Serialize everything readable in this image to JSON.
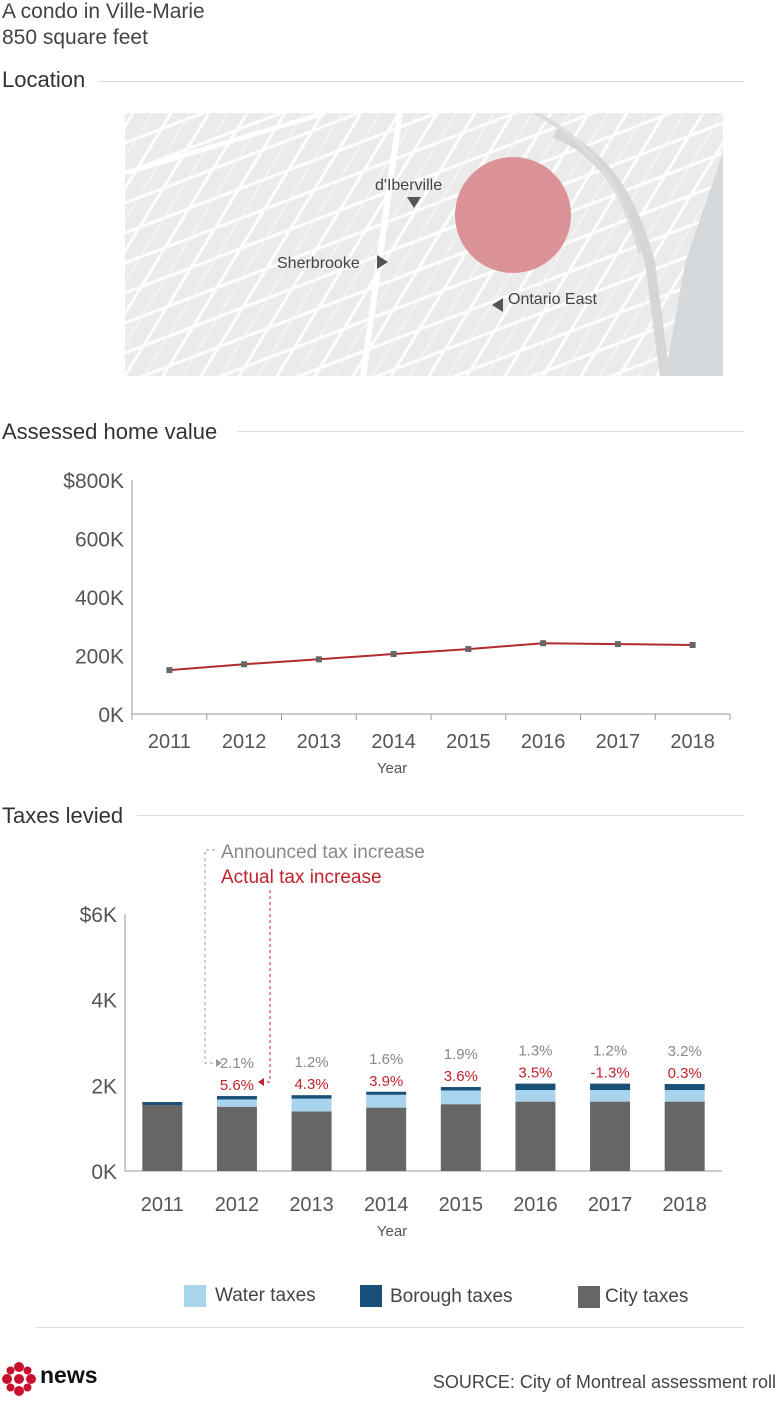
{
  "header": {
    "line1": "A condo in Ville-Marie",
    "line2": "850 square feet"
  },
  "sections": {
    "location": "Location",
    "assessed": "Assessed home value",
    "taxes": "Taxes levied"
  },
  "map": {
    "labels": {
      "diberville": "d'Iberville",
      "sherbrooke": "Sherbrooke",
      "ontario": "Ontario East"
    },
    "colors": {
      "circle": "#d9888d",
      "water": "#d9dddf",
      "land": "#ececec"
    }
  },
  "chart_data": [
    {
      "type": "line",
      "title": "",
      "x": [
        "2011",
        "2012",
        "2013",
        "2014",
        "2015",
        "2016",
        "2017",
        "2018"
      ],
      "values": [
        150000,
        170000,
        187000,
        205000,
        222000,
        242000,
        239000,
        236000
      ],
      "xlabel": "Year",
      "ylabel": "",
      "ylim": [
        0,
        800000
      ],
      "yticks": [
        "0K",
        "200K",
        "400K",
        "600K",
        "$800K"
      ],
      "line_color": "#b22a2e"
    },
    {
      "type": "bar",
      "stacked": true,
      "categories": [
        "2011",
        "2012",
        "2013",
        "2014",
        "2015",
        "2016",
        "2017",
        "2018"
      ],
      "series": [
        {
          "name": "City taxes",
          "color": "#666666",
          "values": [
            1540,
            1500,
            1390,
            1480,
            1560,
            1620,
            1620,
            1620
          ]
        },
        {
          "name": "Water taxes",
          "color": "#a9d4ee",
          "values": [
            0,
            170,
            300,
            300,
            320,
            270,
            270,
            270
          ]
        },
        {
          "name": "Borough taxes",
          "color": "#1a4f78",
          "values": [
            70,
            80,
            80,
            70,
            80,
            150,
            150,
            140
          ]
        }
      ],
      "announced": [
        "",
        "2.1%",
        "1.2%",
        "1.6%",
        "1.9%",
        "1.3%",
        "1.2%",
        "3.2%"
      ],
      "actual": [
        "",
        "5.6%",
        "4.3%",
        "3.9%",
        "3.6%",
        "3.5%",
        "-1.3%",
        "0.3%"
      ],
      "annotation_announced": "Announced tax increase",
      "annotation_actual": "Actual tax increase",
      "xlabel": "Year",
      "ylim": [
        0,
        6000
      ],
      "yticks": [
        "0K",
        "2K",
        "4K",
        "$6K"
      ],
      "legend_position": "bottom"
    }
  ],
  "legend": {
    "water": "Water taxes",
    "borough": "Borough taxes",
    "city": "City taxes"
  },
  "footer": {
    "brand": "news",
    "source": "SOURCE: City of Montreal assessment roll"
  }
}
